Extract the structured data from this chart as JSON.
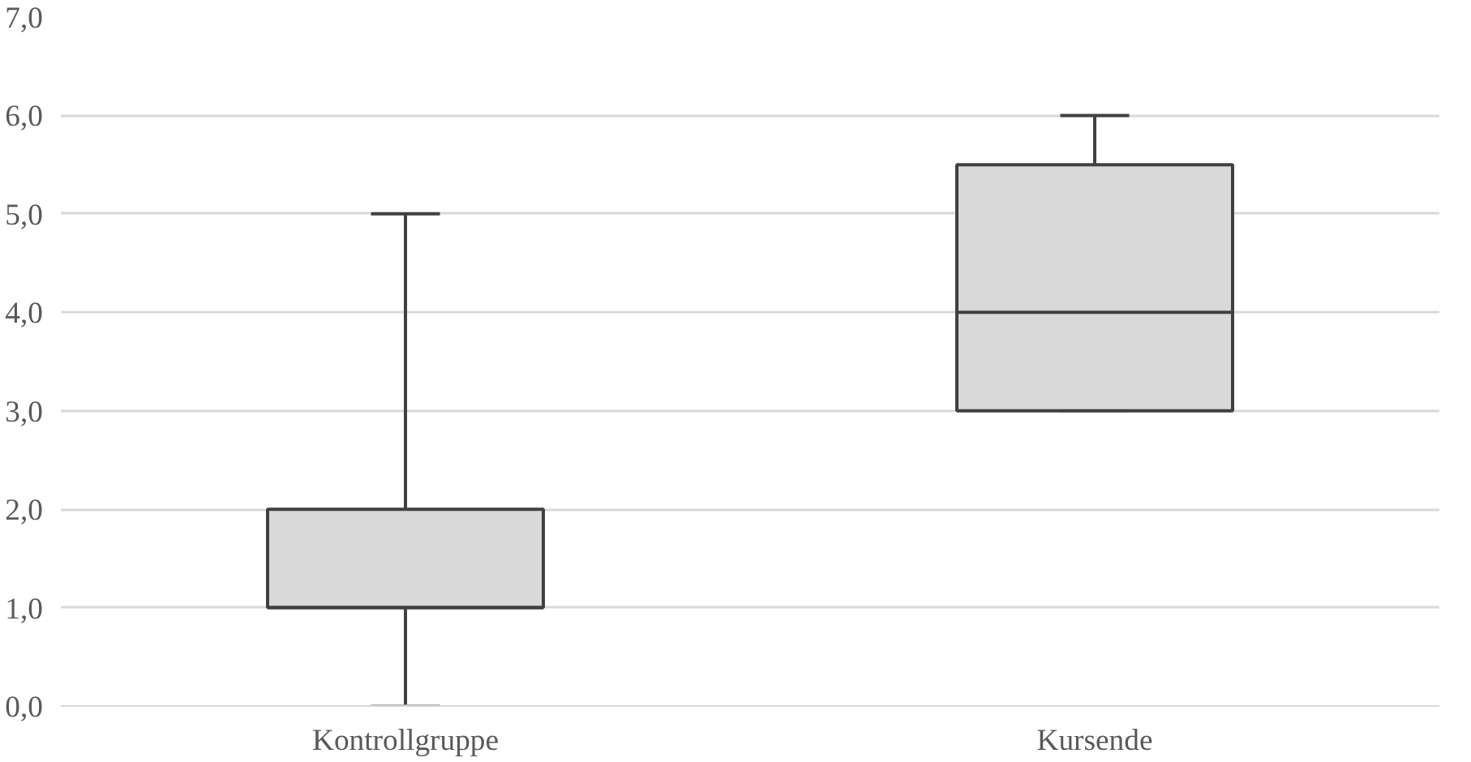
{
  "chart_data": {
    "type": "box",
    "categories": [
      "Kontrollgruppe",
      "Kursende"
    ],
    "boxes": [
      {
        "low": 0,
        "q1": 1,
        "median": 1,
        "q3": 2,
        "high": 5
      },
      {
        "low": 3,
        "q1": 3,
        "median": 4,
        "q3": 5.5,
        "high": 6
      }
    ],
    "color": "#d9d9d9",
    "ylim": [
      0,
      7
    ],
    "yticks": [
      {
        "value": 0,
        "label": "0,0"
      },
      {
        "value": 1,
        "label": "1,0"
      },
      {
        "value": 2,
        "label": "2,0"
      },
      {
        "value": 3,
        "label": "3,0"
      },
      {
        "value": 4,
        "label": "4,0"
      },
      {
        "value": 5,
        "label": "5,0"
      },
      {
        "value": 6,
        "label": "6,0"
      },
      {
        "value": 7,
        "label": "7,0"
      }
    ],
    "grid": "y"
  }
}
